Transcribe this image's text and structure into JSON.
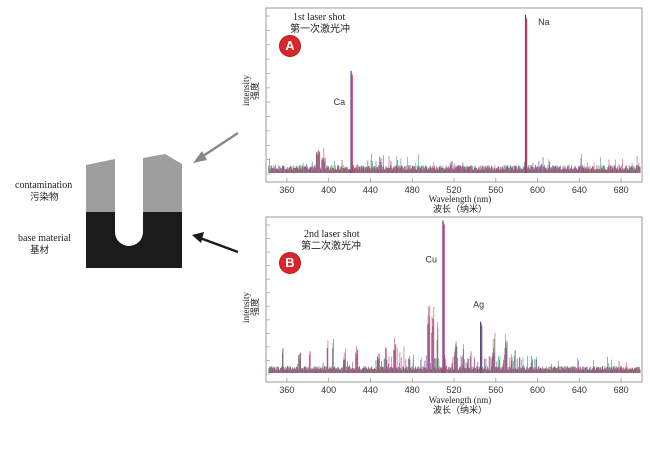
{
  "material": {
    "contamination_en": "contamination",
    "contamination_cn": "污染物",
    "base_en": "base material",
    "base_cn": "基材",
    "contamination_color": "#9e9e9e",
    "base_color": "#1b1b1b"
  },
  "chart_data": [
    {
      "type": "line",
      "badge": "A",
      "title": "1st laser shot",
      "title_cn": "第一次激光冲",
      "xlabel": "Wavelength (nm)",
      "xlabel_cn": "波长（纳米）",
      "ylabel": "intensity",
      "ylabel_cn": "强度",
      "xlim": [
        340,
        700
      ],
      "xticks": [
        360,
        400,
        440,
        480,
        520,
        560,
        600,
        640,
        680
      ],
      "peaks": [
        {
          "label": "Ca",
          "x": 422,
          "y": 0.62
        },
        {
          "label": "Na",
          "x": 589,
          "y": 0.97
        }
      ],
      "series_colors": [
        "#5a2a8a",
        "#3a9a5a",
        "#c2366b"
      ]
    },
    {
      "type": "line",
      "badge": "B",
      "title": "2nd laser shot",
      "title_cn": "第二次激光冲",
      "xlabel": "Wavelength (nm)",
      "xlabel_cn": "波长（纳米）",
      "ylabel": "intensity",
      "ylabel_cn": "强度",
      "xlim": [
        340,
        700
      ],
      "xticks": [
        360,
        400,
        440,
        480,
        520,
        560,
        600,
        640,
        680
      ],
      "peaks": [
        {
          "label": "Cu",
          "x": 510,
          "y": 0.99
        },
        {
          "label": "Ag",
          "x": 546,
          "y": 0.32
        }
      ],
      "series_colors": [
        "#5a2a8a",
        "#3a9a5a",
        "#c2366b"
      ]
    }
  ]
}
